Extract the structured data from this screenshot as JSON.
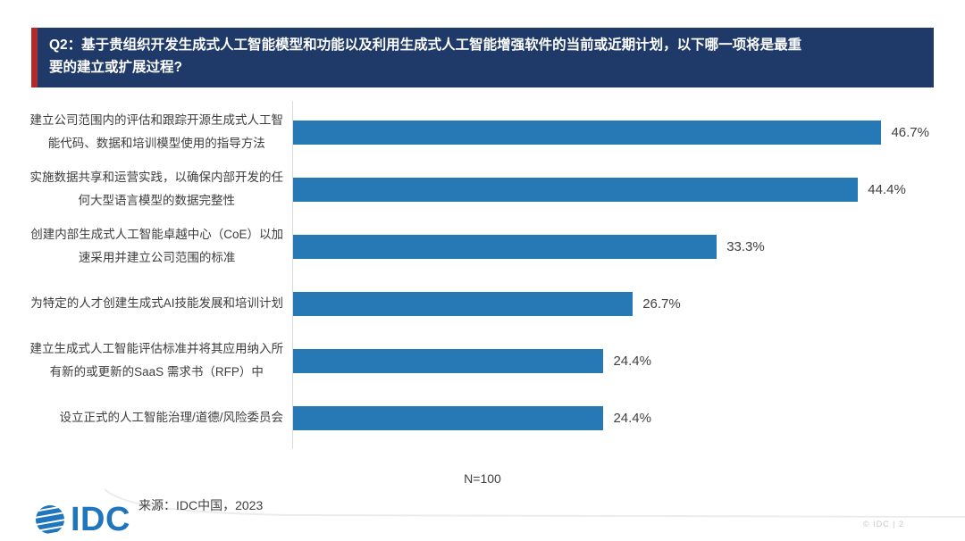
{
  "header": {
    "question": "Q2：基于贵组织开发生成式人工智能模型和功能以及利用生成式人工智能增强软件的当前或近期计划，以下哪一项将是最重\n要的建立或扩展过程?"
  },
  "chart_data": {
    "type": "bar",
    "orientation": "horizontal",
    "title": "Q2：基于贵组织开发生成式人工智能模型和功能以及利用生成式人工智能增强软件的当前或近期计划，以下哪一项将是最重要的建立或扩展过程?",
    "categories": [
      "建立公司范围内的评估和跟踪开源生成式人工智\n能代码、数据和培训模型使用的指导方法",
      "实施数据共享和运营实践，以确保内部开发的任\n何大型语言模型的数据完整性",
      "创建内部生成式人工智能卓越中心（CoE）以加\n速采用并建立公司范围的标准",
      "为特定的人才创建生成式AI技能发展和培训计划",
      "建立生成式人工智能评估标准并将其应用纳入所\n有新的或更新的SaaS 需求书（RFP）中",
      "设立正式的人工智能治理/道德/风险委员会"
    ],
    "values": [
      46.7,
      44.4,
      33.3,
      26.7,
      24.4,
      24.4
    ],
    "value_labels": [
      "46.7%",
      "44.4%",
      "33.3%",
      "26.7%",
      "24.4%",
      "24.4%"
    ],
    "xlim": [
      0,
      50
    ],
    "grid": false,
    "legend": false,
    "bar_color": "#2779b5",
    "sample_note": "N=100"
  },
  "colors": {
    "header_bg": "#1f3a68",
    "accent_red": "#b32a2a",
    "bar_blue": "#2779b5",
    "logo_blue": "#2076bc"
  },
  "footer": {
    "source": "来源：IDC中国，2023",
    "logo_text": "IDC",
    "page_note": "© IDC | 2"
  }
}
